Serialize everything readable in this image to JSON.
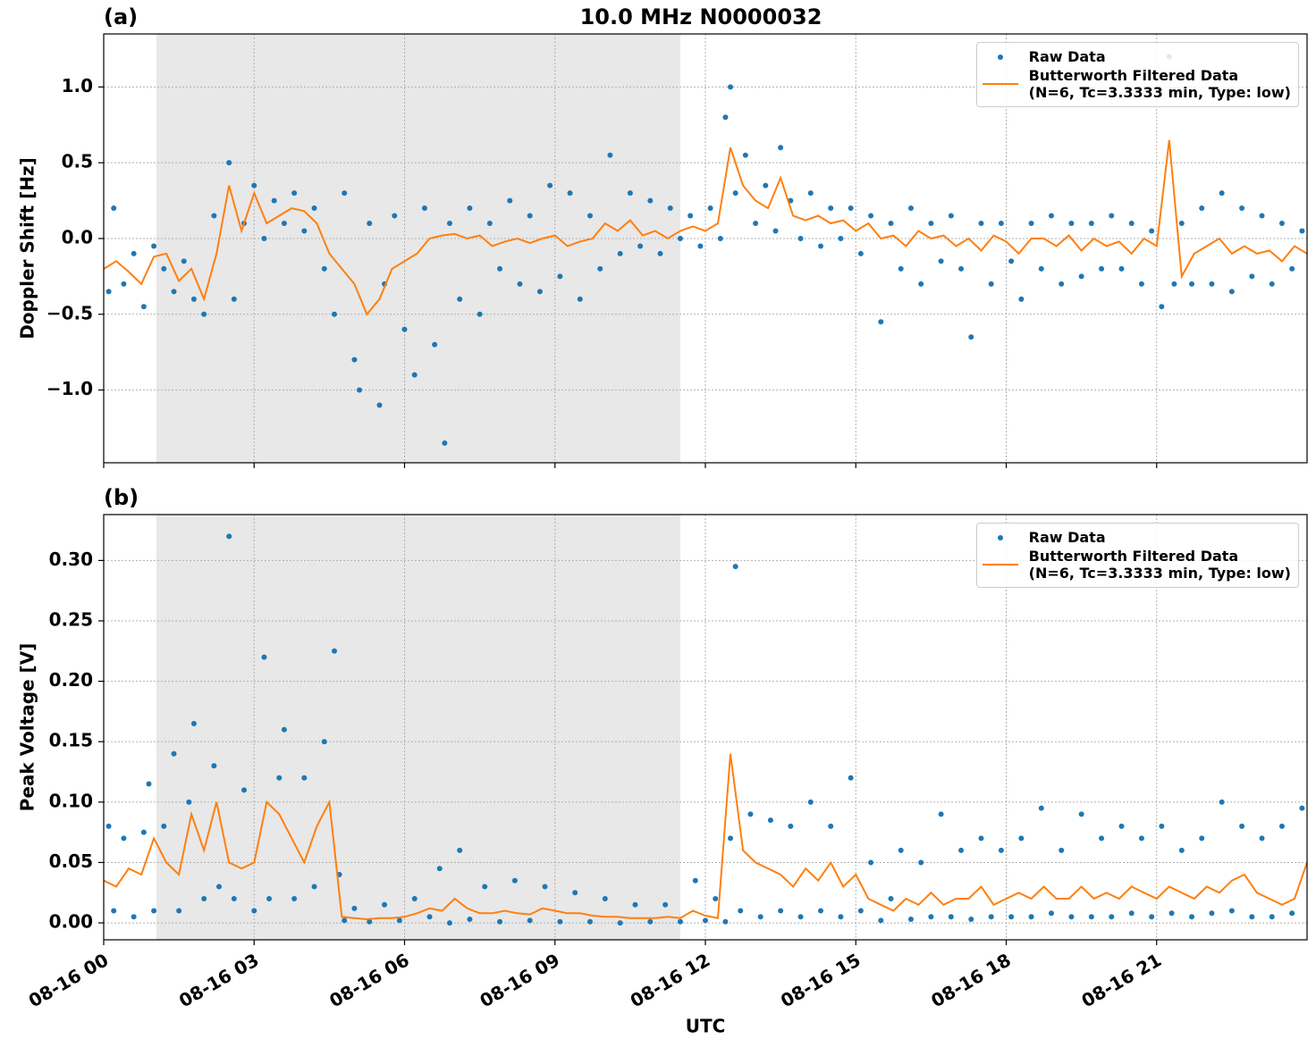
{
  "chart_data": [
    {
      "type": "line",
      "title": "10.0 MHz N0000032",
      "panel_label": "(a)",
      "ylabel": "Doppler Shift [Hz]",
      "xlim": [
        0,
        24
      ],
      "ylim": [
        -1.48,
        1.35
      ],
      "xticks": [
        0,
        3,
        6,
        9,
        12,
        15,
        18,
        21
      ],
      "yticks": [
        {
          "value": -1.0,
          "label": "−1.0"
        },
        {
          "value": -0.5,
          "label": "−0.5"
        },
        {
          "value": 0.0,
          "label": "0.0"
        },
        {
          "value": 0.5,
          "label": "0.5"
        },
        {
          "value": 1.0,
          "label": "1.0"
        }
      ],
      "grid": true,
      "legend": "upper right",
      "axvspan": [
        1.05,
        11.5
      ],
      "span_color": "#e8e8e8",
      "series": [
        {
          "name": "Raw Data",
          "color": "#1f77b4",
          "style": "markers",
          "x": [
            0.1,
            0.2,
            0.4,
            0.6,
            0.8,
            1.0,
            1.2,
            1.4,
            1.6,
            1.8,
            2.0,
            2.2,
            2.5,
            2.6,
            2.8,
            3.0,
            3.2,
            3.4,
            3.6,
            3.8,
            4.0,
            4.2,
            4.4,
            4.6,
            4.8,
            5.0,
            5.1,
            5.3,
            5.5,
            5.6,
            5.8,
            6.0,
            6.2,
            6.4,
            6.6,
            6.8,
            6.9,
            7.1,
            7.3,
            7.5,
            7.7,
            7.9,
            8.1,
            8.3,
            8.5,
            8.7,
            8.9,
            9.1,
            9.3,
            9.5,
            9.7,
            9.9,
            10.1,
            10.3,
            10.5,
            10.7,
            10.9,
            11.1,
            11.3,
            11.5,
            11.7,
            11.9,
            12.1,
            12.3,
            12.4,
            12.5,
            12.6,
            12.8,
            13.0,
            13.2,
            13.4,
            13.5,
            13.7,
            13.9,
            14.1,
            14.3,
            14.5,
            14.7,
            14.9,
            15.1,
            15.3,
            15.5,
            15.7,
            15.9,
            16.1,
            16.3,
            16.5,
            16.7,
            16.9,
            17.1,
            17.3,
            17.5,
            17.7,
            17.9,
            18.1,
            18.3,
            18.5,
            18.7,
            18.9,
            19.1,
            19.3,
            19.5,
            19.7,
            19.9,
            20.1,
            20.3,
            20.5,
            20.7,
            20.9,
            21.1,
            21.25,
            21.35,
            21.5,
            21.7,
            21.9,
            22.1,
            22.3,
            22.5,
            22.7,
            22.9,
            23.1,
            23.3,
            23.5,
            23.7,
            23.9
          ],
          "values": [
            -0.35,
            0.2,
            -0.3,
            -0.1,
            -0.45,
            -0.05,
            -0.2,
            -0.35,
            -0.15,
            -0.4,
            -0.5,
            0.15,
            0.5,
            -0.4,
            0.1,
            0.35,
            0.0,
            0.25,
            0.1,
            0.3,
            0.05,
            0.2,
            -0.2,
            -0.5,
            0.3,
            -0.8,
            -1.0,
            0.1,
            -1.1,
            -0.3,
            0.15,
            -0.6,
            -0.9,
            0.2,
            -0.7,
            -1.35,
            0.1,
            -0.4,
            0.2,
            -0.5,
            0.1,
            -0.2,
            0.25,
            -0.3,
            0.15,
            -0.35,
            0.35,
            -0.25,
            0.3,
            -0.4,
            0.15,
            -0.2,
            0.55,
            -0.1,
            0.3,
            -0.05,
            0.25,
            -0.1,
            0.2,
            0.0,
            0.15,
            -0.05,
            0.2,
            0.0,
            0.8,
            1.0,
            0.3,
            0.55,
            0.1,
            0.35,
            0.05,
            0.6,
            0.25,
            0.0,
            0.3,
            -0.05,
            0.2,
            0.0,
            0.2,
            -0.1,
            0.15,
            -0.55,
            0.1,
            -0.2,
            0.2,
            -0.3,
            0.1,
            -0.15,
            0.15,
            -0.2,
            -0.65,
            0.1,
            -0.3,
            0.1,
            -0.15,
            -0.4,
            0.1,
            -0.2,
            0.15,
            -0.3,
            0.1,
            -0.25,
            0.1,
            -0.2,
            0.15,
            -0.2,
            0.1,
            -0.3,
            0.05,
            -0.45,
            1.2,
            -0.3,
            0.1,
            -0.3,
            0.2,
            -0.3,
            0.3,
            -0.35,
            0.2,
            -0.25,
            0.15,
            -0.3,
            0.1,
            -0.2,
            0.05
          ]
        },
        {
          "name": "Butterworth Filtered Data\n(N=6, Tc=3.3333 min, Type: low)",
          "color": "#ff7f0e",
          "style": "line",
          "x": [
            0,
            0.25,
            0.5,
            0.75,
            1,
            1.25,
            1.5,
            1.75,
            2,
            2.25,
            2.5,
            2.75,
            3,
            3.25,
            3.5,
            3.75,
            4,
            4.25,
            4.5,
            4.75,
            5,
            5.25,
            5.5,
            5.75,
            6,
            6.25,
            6.5,
            6.75,
            7,
            7.25,
            7.5,
            7.75,
            8,
            8.25,
            8.5,
            8.75,
            9,
            9.25,
            9.5,
            9.75,
            10,
            10.25,
            10.5,
            10.75,
            11,
            11.25,
            11.5,
            11.75,
            12,
            12.25,
            12.5,
            12.75,
            13,
            13.25,
            13.5,
            13.75,
            14,
            14.25,
            14.5,
            14.75,
            15,
            15.25,
            15.5,
            15.75,
            16,
            16.25,
            16.5,
            16.75,
            17,
            17.25,
            17.5,
            17.75,
            18,
            18.25,
            18.5,
            18.75,
            19,
            19.25,
            19.5,
            19.75,
            20,
            20.25,
            20.5,
            20.75,
            21,
            21.25,
            21.5,
            21.75,
            22,
            22.25,
            22.5,
            22.75,
            23,
            23.25,
            23.5,
            23.75,
            24
          ],
          "values": [
            -0.2,
            -0.15,
            -0.22,
            -0.3,
            -0.12,
            -0.1,
            -0.28,
            -0.2,
            -0.4,
            -0.1,
            0.35,
            0.05,
            0.3,
            0.1,
            0.15,
            0.2,
            0.18,
            0.1,
            -0.1,
            -0.2,
            -0.3,
            -0.5,
            -0.4,
            -0.2,
            -0.15,
            -0.1,
            0.0,
            0.02,
            0.03,
            0.0,
            0.02,
            -0.05,
            -0.02,
            0.0,
            -0.03,
            0.0,
            0.02,
            -0.05,
            -0.02,
            0.0,
            0.1,
            0.05,
            0.12,
            0.02,
            0.05,
            0.0,
            0.05,
            0.08,
            0.05,
            0.1,
            0.6,
            0.35,
            0.25,
            0.2,
            0.4,
            0.15,
            0.12,
            0.15,
            0.1,
            0.12,
            0.05,
            0.1,
            0.0,
            0.02,
            -0.05,
            0.05,
            0.0,
            0.02,
            -0.05,
            0.0,
            -0.08,
            0.02,
            -0.02,
            -0.1,
            0.0,
            0.0,
            -0.05,
            0.02,
            -0.08,
            0.0,
            -0.05,
            -0.02,
            -0.1,
            0.0,
            -0.05,
            0.65,
            -0.25,
            -0.1,
            -0.05,
            0.0,
            -0.1,
            -0.05,
            -0.1,
            -0.08,
            -0.15,
            -0.05,
            -0.1
          ]
        }
      ]
    },
    {
      "type": "line",
      "panel_label": "(b)",
      "ylabel": "Peak Voltage [V]",
      "xlabel": "UTC",
      "xlim": [
        0,
        24
      ],
      "ylim": [
        -0.014,
        0.338
      ],
      "xticks": [
        {
          "value": 0,
          "label": "08-16 00"
        },
        {
          "value": 3,
          "label": "08-16 03"
        },
        {
          "value": 6,
          "label": "08-16 06"
        },
        {
          "value": 9,
          "label": "08-16 09"
        },
        {
          "value": 12,
          "label": "08-16 12"
        },
        {
          "value": 15,
          "label": "08-16 15"
        },
        {
          "value": 18,
          "label": "08-16 18"
        },
        {
          "value": 21,
          "label": "08-16 21"
        }
      ],
      "yticks": [
        {
          "value": 0.0,
          "label": "0.00"
        },
        {
          "value": 0.05,
          "label": "0.05"
        },
        {
          "value": 0.1,
          "label": "0.10"
        },
        {
          "value": 0.15,
          "label": "0.15"
        },
        {
          "value": 0.2,
          "label": "0.20"
        },
        {
          "value": 0.25,
          "label": "0.25"
        },
        {
          "value": 0.3,
          "label": "0.30"
        }
      ],
      "grid": true,
      "legend": "upper right",
      "axvspan": [
        1.05,
        11.5
      ],
      "span_color": "#e8e8e8",
      "series": [
        {
          "name": "Raw Data",
          "color": "#1f77b4",
          "style": "markers",
          "x": [
            0.1,
            0.2,
            0.4,
            0.6,
            0.8,
            0.9,
            1.0,
            1.2,
            1.4,
            1.5,
            1.7,
            1.8,
            2.0,
            2.2,
            2.3,
            2.5,
            2.6,
            2.8,
            3.0,
            3.2,
            3.3,
            3.5,
            3.6,
            3.8,
            4.0,
            4.2,
            4.4,
            4.6,
            4.7,
            4.8,
            5.0,
            5.3,
            5.6,
            5.9,
            6.2,
            6.5,
            6.7,
            6.9,
            7.1,
            7.3,
            7.6,
            7.9,
            8.2,
            8.5,
            8.8,
            9.1,
            9.4,
            9.7,
            10.0,
            10.3,
            10.6,
            10.9,
            11.2,
            11.5,
            11.8,
            12.0,
            12.2,
            12.4,
            12.5,
            12.6,
            12.7,
            12.9,
            13.1,
            13.3,
            13.5,
            13.7,
            13.9,
            14.1,
            14.3,
            14.5,
            14.7,
            14.9,
            15.1,
            15.3,
            15.5,
            15.7,
            15.9,
            16.1,
            16.3,
            16.5,
            16.7,
            16.9,
            17.1,
            17.3,
            17.5,
            17.7,
            17.9,
            18.1,
            18.3,
            18.5,
            18.7,
            18.9,
            19.1,
            19.3,
            19.5,
            19.7,
            19.9,
            20.1,
            20.3,
            20.5,
            20.7,
            20.9,
            21.1,
            21.3,
            21.5,
            21.7,
            21.9,
            22.1,
            22.3,
            22.5,
            22.7,
            22.9,
            23.1,
            23.3,
            23.5,
            23.7,
            23.9
          ],
          "values": [
            0.08,
            0.01,
            0.07,
            0.005,
            0.075,
            0.115,
            0.01,
            0.08,
            0.14,
            0.01,
            0.1,
            0.165,
            0.02,
            0.13,
            0.03,
            0.32,
            0.02,
            0.11,
            0.01,
            0.22,
            0.02,
            0.12,
            0.16,
            0.02,
            0.12,
            0.03,
            0.15,
            0.225,
            0.04,
            0.002,
            0.012,
            0.001,
            0.015,
            0.002,
            0.02,
            0.005,
            0.045,
            0.0,
            0.06,
            0.003,
            0.03,
            0.001,
            0.035,
            0.002,
            0.03,
            0.001,
            0.025,
            0.001,
            0.02,
            0.0,
            0.015,
            0.001,
            0.015,
            0.001,
            0.035,
            0.002,
            0.02,
            0.001,
            0.07,
            0.295,
            0.01,
            0.09,
            0.005,
            0.085,
            0.01,
            0.08,
            0.005,
            0.1,
            0.01,
            0.08,
            0.005,
            0.12,
            0.01,
            0.05,
            0.002,
            0.02,
            0.06,
            0.003,
            0.05,
            0.005,
            0.09,
            0.005,
            0.06,
            0.003,
            0.07,
            0.005,
            0.06,
            0.005,
            0.07,
            0.005,
            0.095,
            0.008,
            0.06,
            0.005,
            0.09,
            0.005,
            0.07,
            0.005,
            0.08,
            0.008,
            0.07,
            0.005,
            0.08,
            0.008,
            0.06,
            0.005,
            0.07,
            0.008,
            0.1,
            0.01,
            0.08,
            0.005,
            0.07,
            0.005,
            0.08,
            0.008,
            0.095
          ]
        },
        {
          "name": "Butterworth Filtered Data\n(N=6, Tc=3.3333 min, Type: low)",
          "color": "#ff7f0e",
          "style": "line",
          "x": [
            0,
            0.25,
            0.5,
            0.75,
            1,
            1.25,
            1.5,
            1.75,
            2,
            2.25,
            2.5,
            2.75,
            3,
            3.25,
            3.5,
            3.75,
            4,
            4.25,
            4.5,
            4.75,
            5,
            5.25,
            5.5,
            5.75,
            6,
            6.25,
            6.5,
            6.75,
            7,
            7.25,
            7.5,
            7.75,
            8,
            8.25,
            8.5,
            8.75,
            9,
            9.25,
            9.5,
            9.75,
            10,
            10.25,
            10.5,
            10.75,
            11,
            11.25,
            11.5,
            11.75,
            12,
            12.25,
            12.5,
            12.75,
            13,
            13.25,
            13.5,
            13.75,
            14,
            14.25,
            14.5,
            14.75,
            15,
            15.25,
            15.5,
            15.75,
            16,
            16.25,
            16.5,
            16.75,
            17,
            17.25,
            17.5,
            17.75,
            18,
            18.25,
            18.5,
            18.75,
            19,
            19.25,
            19.5,
            19.75,
            20,
            20.25,
            20.5,
            20.75,
            21,
            21.25,
            21.5,
            21.75,
            22,
            22.25,
            22.5,
            22.75,
            23,
            23.25,
            23.5,
            23.75,
            24
          ],
          "values": [
            0.035,
            0.03,
            0.045,
            0.04,
            0.07,
            0.05,
            0.04,
            0.09,
            0.06,
            0.1,
            0.05,
            0.045,
            0.05,
            0.1,
            0.09,
            0.07,
            0.05,
            0.08,
            0.1,
            0.005,
            0.004,
            0.003,
            0.004,
            0.004,
            0.005,
            0.008,
            0.012,
            0.01,
            0.02,
            0.012,
            0.008,
            0.008,
            0.01,
            0.008,
            0.007,
            0.012,
            0.01,
            0.008,
            0.008,
            0.006,
            0.005,
            0.005,
            0.004,
            0.004,
            0.004,
            0.005,
            0.004,
            0.01,
            0.006,
            0.004,
            0.14,
            0.06,
            0.05,
            0.045,
            0.04,
            0.03,
            0.045,
            0.035,
            0.05,
            0.03,
            0.04,
            0.02,
            0.015,
            0.01,
            0.02,
            0.015,
            0.025,
            0.015,
            0.02,
            0.02,
            0.03,
            0.015,
            0.02,
            0.025,
            0.02,
            0.03,
            0.02,
            0.02,
            0.03,
            0.02,
            0.025,
            0.02,
            0.03,
            0.025,
            0.02,
            0.03,
            0.025,
            0.02,
            0.03,
            0.025,
            0.035,
            0.04,
            0.025,
            0.02,
            0.015,
            0.02,
            0.05
          ]
        }
      ]
    }
  ]
}
